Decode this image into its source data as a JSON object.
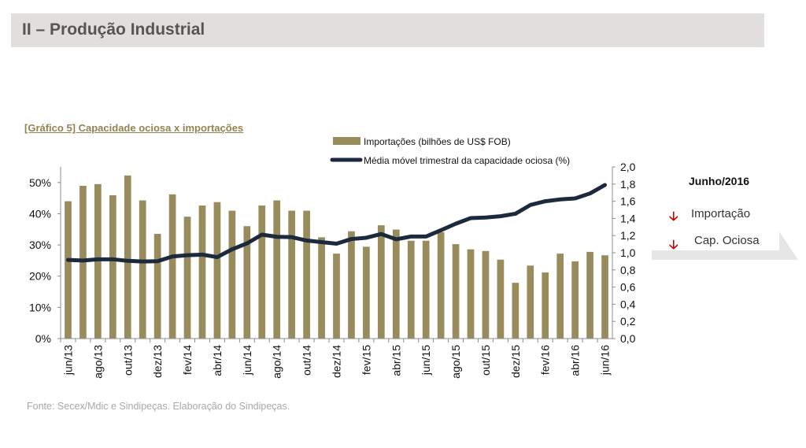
{
  "header": {
    "title": "II – Produção Industrial"
  },
  "chart_title": "[Gráfico 5] Capacidade ociosa x importações",
  "callout": {
    "period": "Junho/2016",
    "items": [
      {
        "label": "Importação",
        "icon": "arrow-down-icon"
      },
      {
        "label": "Cap. Ociosa",
        "icon": "arrow-down-icon"
      }
    ]
  },
  "source": "Fonte: Secex/Mdic e Sindipeças. Elaboração do Sindipeças.",
  "colors": {
    "bar": "#988b5c",
    "line": "#1c2a3e",
    "arrow": "#c00000",
    "header_bg": "#e0dfde",
    "title": "#938353"
  },
  "chart_data": {
    "type": "bar+line",
    "categories": [
      "jun/13",
      "jul/13",
      "ago/13",
      "set/13",
      "out/13",
      "nov/13",
      "dez/13",
      "jan/14",
      "fev/14",
      "mar/14",
      "abr/14",
      "mai/14",
      "jun/14",
      "jul/14",
      "ago/14",
      "set/14",
      "out/14",
      "nov/14",
      "dez/14",
      "jan/15",
      "fev/15",
      "mar/15",
      "abr/15",
      "mai/15",
      "jun/15",
      "jul/15",
      "ago/15",
      "set/15",
      "out/15",
      "nov/15",
      "dez/15",
      "jan/16",
      "fev/16",
      "mar/16",
      "abr/16",
      "mai/16",
      "jun/16"
    ],
    "tick_labels": [
      "jun/13",
      "",
      "ago/13",
      "",
      "out/13",
      "",
      "dez/13",
      "",
      "fev/14",
      "",
      "abr/14",
      "",
      "jun/14",
      "",
      "ago/14",
      "",
      "out/14",
      "",
      "dez/14",
      "",
      "fev/15",
      "",
      "abr/15",
      "",
      "jun/15",
      "",
      "ago/15",
      "",
      "out/15",
      "",
      "dez/15",
      "",
      "fev/16",
      "",
      "abr/16",
      "",
      "jun/16"
    ],
    "series": [
      {
        "name": "Importações (bilhões de US$ FOB)",
        "type": "bar",
        "axis": "right",
        "values": [
          1.6,
          1.78,
          1.8,
          1.67,
          1.9,
          1.61,
          1.22,
          1.68,
          1.42,
          1.55,
          1.59,
          1.49,
          1.31,
          1.55,
          1.61,
          1.49,
          1.49,
          1.18,
          0.99,
          1.25,
          1.07,
          1.32,
          1.27,
          1.14,
          1.14,
          1.24,
          1.1,
          1.04,
          1.02,
          0.92,
          0.65,
          0.85,
          0.77,
          0.99,
          0.9,
          1.01,
          0.97
        ]
      },
      {
        "name": "Média móvel trimestral da capacidade ociosa (%)",
        "type": "line",
        "axis": "left",
        "values": [
          25.2,
          25.0,
          25.4,
          25.4,
          24.9,
          24.7,
          24.8,
          26.3,
          26.7,
          26.9,
          26.1,
          28.6,
          30.5,
          33.3,
          32.6,
          32.5,
          31.4,
          30.9,
          30.4,
          31.9,
          32.3,
          33.5,
          31.8,
          32.7,
          32.7,
          34.7,
          36.8,
          38.6,
          38.8,
          39.2,
          40.0,
          42.8,
          44.0,
          44.6,
          44.9,
          46.5,
          49.2
        ]
      }
    ],
    "left_axis": {
      "min": 0,
      "max": 55,
      "ticks": [
        0,
        10,
        20,
        30,
        40,
        50
      ],
      "tick_labels": [
        "0%",
        "10%",
        "20%",
        "30%",
        "40%",
        "50%"
      ]
    },
    "right_axis": {
      "min": 0,
      "max": 2.0,
      "ticks": [
        0,
        0.2,
        0.4,
        0.6,
        0.8,
        1.0,
        1.2,
        1.4,
        1.6,
        1.8,
        2.0
      ],
      "tick_labels": [
        "0,0",
        "0,2",
        "0,4",
        "0,6",
        "0,8",
        "1,0",
        "1,2",
        "1,4",
        "1,6",
        "1,8",
        "2,0"
      ]
    },
    "legend": [
      {
        "label": "Importações (bilhões de US$ FOB)",
        "kind": "bar"
      },
      {
        "label": "Média móvel trimestral da capacidade ociosa (%)",
        "kind": "line"
      }
    ],
    "legend_position": "top-right"
  }
}
